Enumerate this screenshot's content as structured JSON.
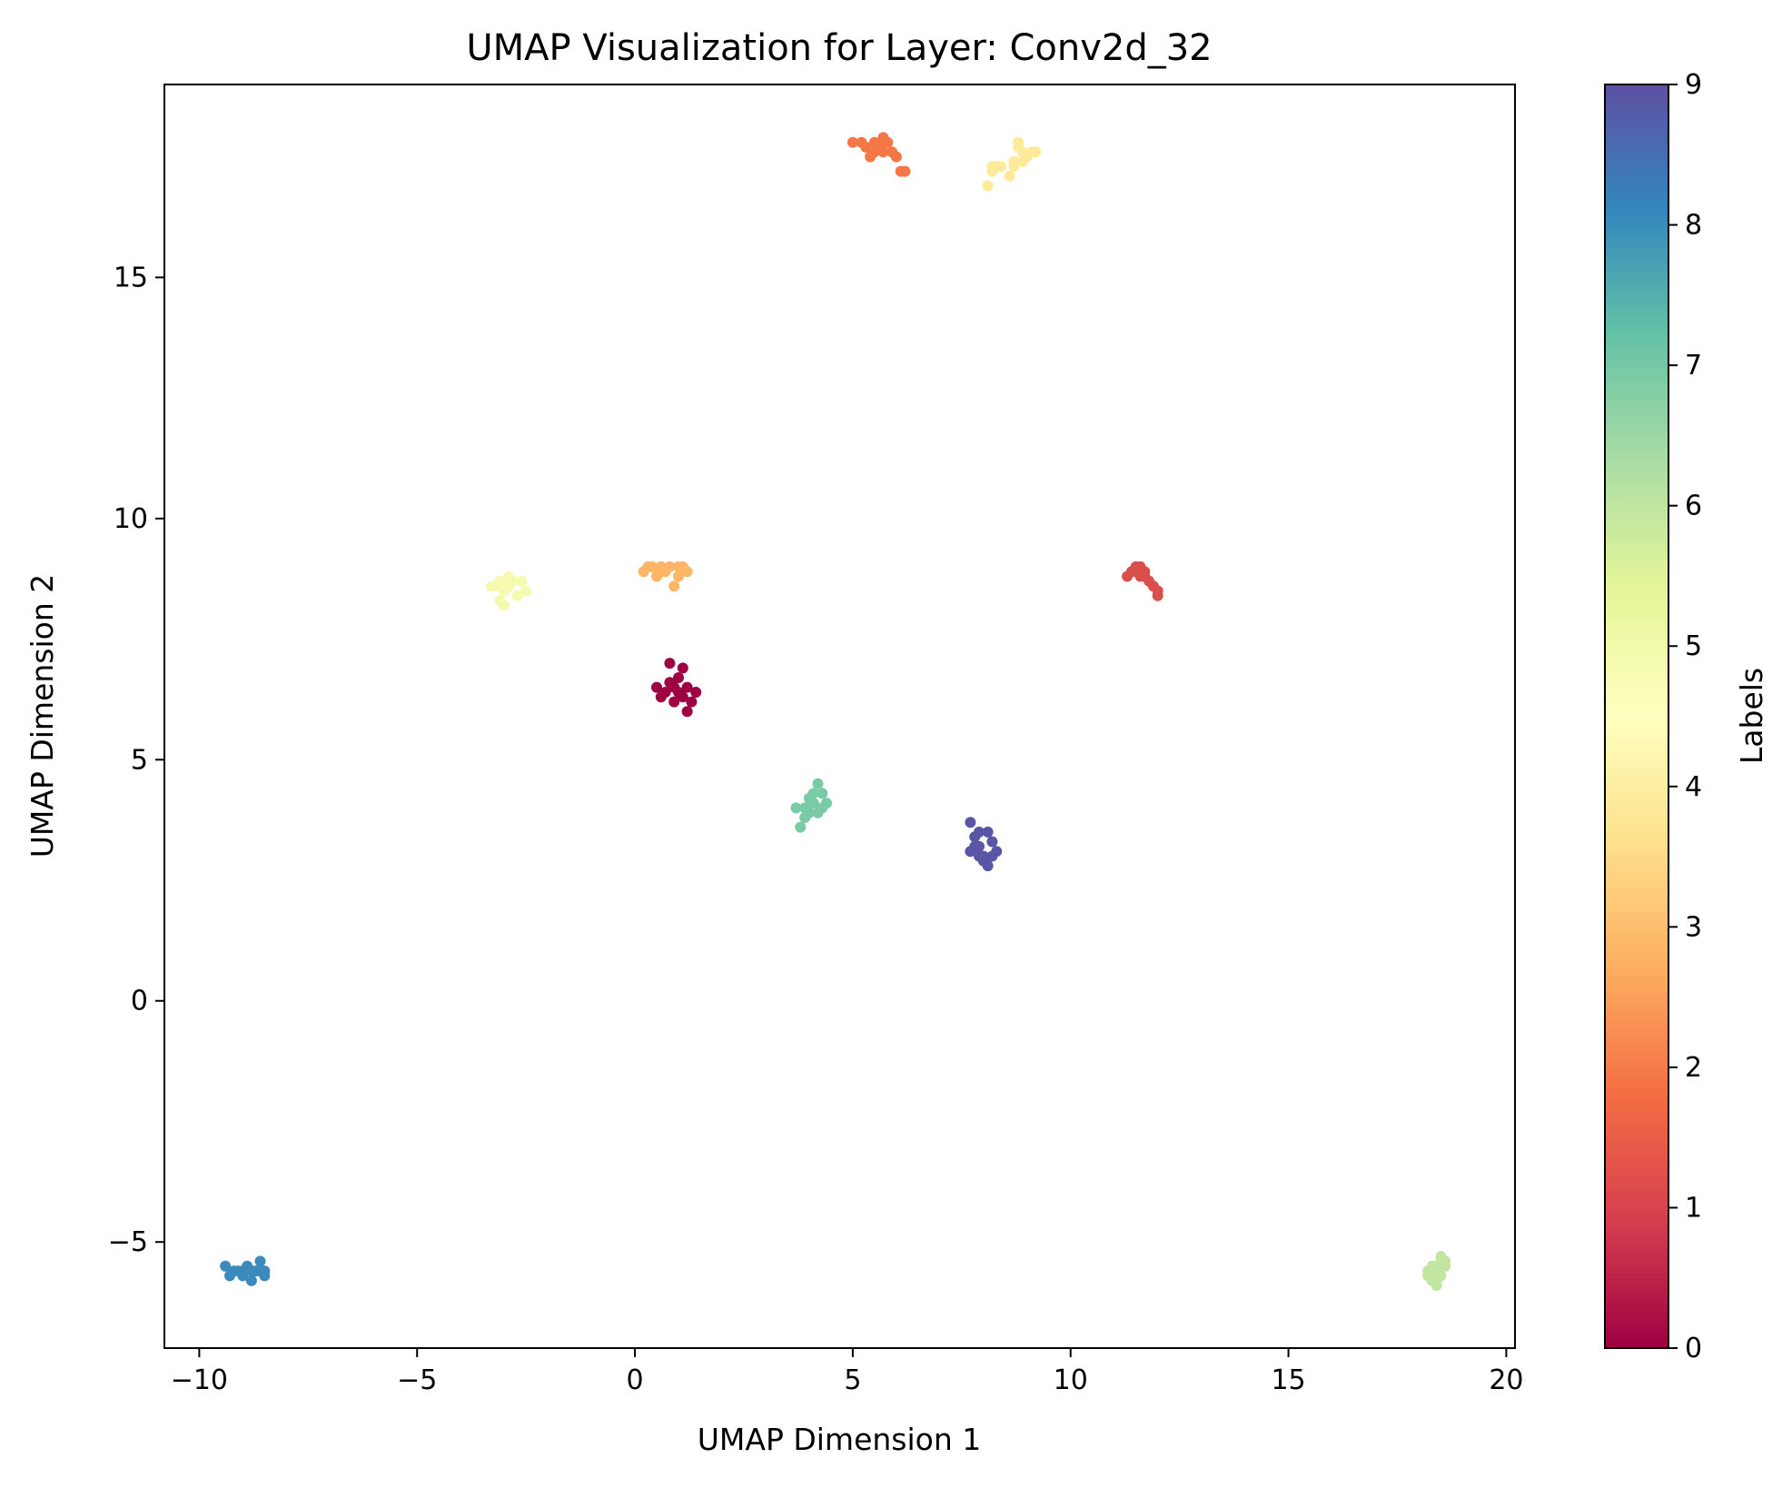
{
  "chart_data": {
    "type": "scatter",
    "title": "UMAP Visualization for Layer: Conv2d_32",
    "xlabel": "UMAP Dimension 1",
    "ylabel": "UMAP Dimension 2",
    "xlim": [
      -10.8,
      20.2
    ],
    "ylim": [
      -7.2,
      19.0
    ],
    "xticks": [
      -10,
      -5,
      0,
      5,
      10,
      15,
      20
    ],
    "yticks": [
      -5,
      0,
      5,
      10,
      15
    ],
    "xtick_labels": [
      "−10",
      "−5",
      "0",
      "5",
      "10",
      "15",
      "20"
    ],
    "ytick_labels": [
      "−5",
      "0",
      "5",
      "10",
      "15"
    ],
    "grid": false,
    "colorbar": {
      "label": "Labels",
      "range": [
        0,
        9
      ],
      "ticks": [
        0,
        1,
        2,
        3,
        4,
        5,
        6,
        7,
        8,
        9
      ],
      "tick_labels": [
        "0",
        "1",
        "2",
        "3",
        "4",
        "5",
        "6",
        "7",
        "8",
        "9"
      ],
      "colormap": "Spectral",
      "stops": [
        "#9e0142",
        "#d53e4f",
        "#f46d43",
        "#fdae61",
        "#fee08b",
        "#ffffbf",
        "#e6f598",
        "#abdda4",
        "#66c2a5",
        "#3288bd",
        "#5e4fa2"
      ]
    },
    "series": [
      {
        "label": 0,
        "color": "#9e0142",
        "points": [
          [
            0.9,
            6.5
          ],
          [
            1.1,
            6.3
          ],
          [
            0.7,
            6.4
          ],
          [
            1.2,
            6.0
          ],
          [
            0.8,
            7.0
          ],
          [
            1.0,
            6.7
          ],
          [
            1.4,
            6.4
          ],
          [
            0.6,
            6.3
          ],
          [
            1.1,
            6.9
          ],
          [
            0.5,
            6.5
          ],
          [
            0.9,
            6.2
          ],
          [
            1.2,
            6.5
          ],
          [
            1.0,
            6.4
          ],
          [
            1.3,
            6.2
          ],
          [
            0.8,
            6.6
          ]
        ]
      },
      {
        "label": 1,
        "color": "#d94f4c",
        "points": [
          [
            11.3,
            8.8
          ],
          [
            11.5,
            8.9
          ],
          [
            11.7,
            8.8
          ],
          [
            11.6,
            9.0
          ],
          [
            11.9,
            8.6
          ],
          [
            12.0,
            8.4
          ],
          [
            11.8,
            8.7
          ],
          [
            11.4,
            8.9
          ],
          [
            11.5,
            9.0
          ],
          [
            12.0,
            8.5
          ],
          [
            11.7,
            8.9
          ],
          [
            11.6,
            8.8
          ]
        ]
      },
      {
        "label": 2,
        "color": "#f57747",
        "points": [
          [
            5.0,
            17.8
          ],
          [
            5.3,
            17.7
          ],
          [
            5.5,
            17.6
          ],
          [
            5.7,
            17.6
          ],
          [
            5.8,
            17.8
          ],
          [
            6.0,
            17.5
          ],
          [
            6.2,
            17.2
          ],
          [
            5.4,
            17.5
          ],
          [
            5.6,
            17.7
          ],
          [
            5.9,
            17.6
          ],
          [
            6.1,
            17.2
          ],
          [
            5.2,
            17.8
          ],
          [
            5.5,
            17.8
          ],
          [
            5.7,
            17.9
          ]
        ]
      },
      {
        "label": 3,
        "color": "#fdb567",
        "points": [
          [
            0.2,
            8.9
          ],
          [
            0.4,
            9.0
          ],
          [
            0.6,
            8.9
          ],
          [
            0.8,
            9.0
          ],
          [
            1.0,
            9.0
          ],
          [
            1.2,
            8.9
          ],
          [
            0.5,
            8.8
          ],
          [
            0.9,
            8.6
          ],
          [
            0.7,
            8.9
          ],
          [
            0.3,
            9.0
          ],
          [
            1.1,
            9.0
          ],
          [
            0.6,
            9.0
          ],
          [
            1.0,
            8.8
          ]
        ]
      },
      {
        "label": 4,
        "color": "#feeb9a",
        "points": [
          [
            8.1,
            16.9
          ],
          [
            8.2,
            17.2
          ],
          [
            8.4,
            17.3
          ],
          [
            8.7,
            17.4
          ],
          [
            8.9,
            17.6
          ],
          [
            9.1,
            17.6
          ],
          [
            8.8,
            17.8
          ],
          [
            9.0,
            17.5
          ],
          [
            8.6,
            17.1
          ],
          [
            8.2,
            17.3
          ],
          [
            8.9,
            17.4
          ],
          [
            8.7,
            17.3
          ],
          [
            8.8,
            17.7
          ],
          [
            9.2,
            17.6
          ],
          [
            8.3,
            17.3
          ]
        ]
      },
      {
        "label": 5,
        "color": "#f6faaf",
        "points": [
          [
            -3.2,
            8.6
          ],
          [
            -3.0,
            8.5
          ],
          [
            -2.8,
            8.7
          ],
          [
            -3.1,
            8.3
          ],
          [
            -2.6,
            8.7
          ],
          [
            -2.9,
            8.8
          ],
          [
            -3.0,
            8.2
          ],
          [
            -2.5,
            8.5
          ],
          [
            -3.3,
            8.6
          ],
          [
            -2.7,
            8.4
          ],
          [
            -3.1,
            8.7
          ],
          [
            -2.9,
            8.6
          ]
        ]
      },
      {
        "label": 6,
        "color": "#c2e6a0",
        "points": [
          [
            18.2,
            -5.7
          ],
          [
            18.4,
            -5.6
          ],
          [
            18.5,
            -5.4
          ],
          [
            18.6,
            -5.5
          ],
          [
            18.3,
            -5.8
          ],
          [
            18.4,
            -5.9
          ],
          [
            18.5,
            -5.7
          ],
          [
            18.6,
            -5.4
          ],
          [
            18.2,
            -5.6
          ],
          [
            18.3,
            -5.5
          ],
          [
            18.5,
            -5.3
          ],
          [
            18.4,
            -5.8
          ]
        ]
      },
      {
        "label": 7,
        "color": "#79cba5",
        "points": [
          [
            3.7,
            4.0
          ],
          [
            3.9,
            3.8
          ],
          [
            4.1,
            4.1
          ],
          [
            4.3,
            4.3
          ],
          [
            4.2,
            4.5
          ],
          [
            4.4,
            4.1
          ],
          [
            4.0,
            3.9
          ],
          [
            3.8,
            3.6
          ],
          [
            4.1,
            4.3
          ],
          [
            4.3,
            4.0
          ],
          [
            4.2,
            3.9
          ],
          [
            3.9,
            4.0
          ],
          [
            4.0,
            4.2
          ]
        ]
      },
      {
        "label": 8,
        "color": "#3b89bd",
        "points": [
          [
            -9.4,
            -5.5
          ],
          [
            -9.2,
            -5.6
          ],
          [
            -9.0,
            -5.7
          ],
          [
            -8.9,
            -5.5
          ],
          [
            -8.7,
            -5.6
          ],
          [
            -8.6,
            -5.4
          ],
          [
            -8.5,
            -5.7
          ],
          [
            -8.8,
            -5.8
          ],
          [
            -9.3,
            -5.7
          ],
          [
            -8.6,
            -5.6
          ],
          [
            -9.1,
            -5.6
          ],
          [
            -8.8,
            -5.6
          ],
          [
            -8.5,
            -5.6
          ],
          [
            -9.0,
            -5.6
          ]
        ]
      },
      {
        "label": 9,
        "color": "#5a55a5",
        "points": [
          [
            7.7,
            3.7
          ],
          [
            7.8,
            3.4
          ],
          [
            7.9,
            3.2
          ],
          [
            8.0,
            3.0
          ],
          [
            8.1,
            2.8
          ],
          [
            8.2,
            3.3
          ],
          [
            8.3,
            3.1
          ],
          [
            7.7,
            3.1
          ],
          [
            7.9,
            3.5
          ],
          [
            8.1,
            3.5
          ],
          [
            7.8,
            3.2
          ],
          [
            8.0,
            2.9
          ],
          [
            8.2,
            3.0
          ],
          [
            7.9,
            3.0
          ]
        ]
      }
    ]
  }
}
